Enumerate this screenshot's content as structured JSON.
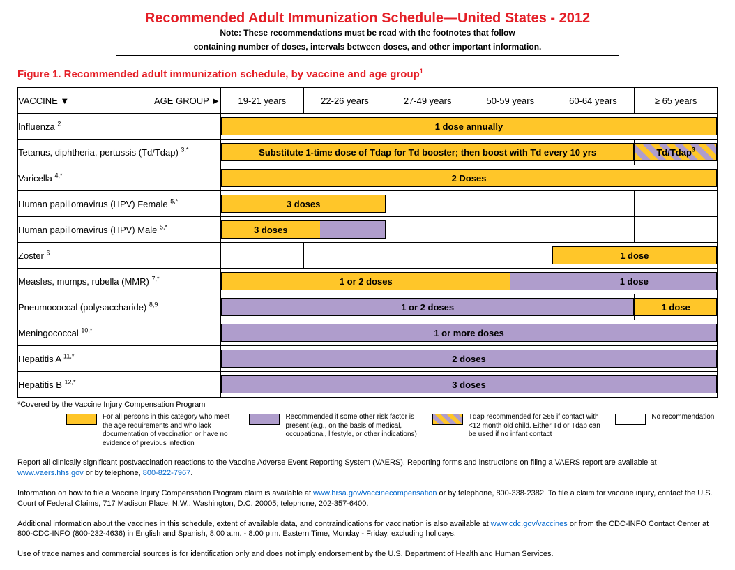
{
  "title": "Recommended Adult Immunization Schedule—United States - 2012",
  "note_line1": "Note: These recommendations must be read with the footnotes that follow",
  "note_line2": "containing number of doses, intervals between doses, and other important information.",
  "figure_title_pre": "Figure 1. Recommended adult immunization schedule, by vaccine and age group",
  "figure_title_sup": "1",
  "header": {
    "vaccine_label": "VACCINE ▼",
    "age_group_label": "AGE GROUP ►",
    "ages": [
      "19-21 years",
      "22-26 years",
      "27-49 years",
      "50-59 years",
      "60-64 years",
      "≥ 65 years"
    ]
  },
  "colors": {
    "yellow": "#ffc629",
    "purple": "#af9dcc",
    "red": "#e41e26",
    "link": "#0066cc",
    "border": "#000000",
    "background": "#ffffff"
  },
  "rows": {
    "influenza": {
      "label": "Influenza ",
      "sup": "2",
      "bar1": "1 dose annually"
    },
    "tdap": {
      "label": "Tetanus, diphtheria, pertussis (Td/Tdap) ",
      "sup": "3,*",
      "bar1": "Substitute 1-time dose of Tdap for Td booster; then boost with Td every 10 yrs",
      "bar2": "Td/Tdap",
      "bar2_sup": "3"
    },
    "varicella": {
      "label": "Varicella ",
      "sup": "4,*",
      "bar1": "2 Doses"
    },
    "hpv_f": {
      "label": "Human papillomavirus (HPV) Female ",
      "sup": "5,*",
      "bar1": "3 doses"
    },
    "hpv_m": {
      "label": "Human papillomavirus (HPV) Male ",
      "sup": "5,*",
      "bar1": "3 doses"
    },
    "zoster": {
      "label": "Zoster ",
      "sup": "6",
      "bar1": "1 dose"
    },
    "mmr": {
      "label": "Measles, mumps, rubella (MMR) ",
      "sup": "7,*",
      "bar1": "1 or 2 doses",
      "bar2": "1 dose"
    },
    "pneumo": {
      "label": "Pneumococcal (polysaccharide) ",
      "sup": "8,9",
      "bar1": "1 or 2 doses",
      "bar2": "1 dose"
    },
    "mening": {
      "label": "Meningococcal ",
      "sup": "10,*",
      "bar1": "1 or more doses"
    },
    "hepa": {
      "label": "Hepatitis A ",
      "sup": "11,*",
      "bar1": "2 doses"
    },
    "hepb": {
      "label": "Hepatitis B ",
      "sup": "12,*",
      "bar1": "3 doses"
    }
  },
  "coverage_note": "*Covered by the Vaccine Injury Compensation Program",
  "legend": {
    "yellow": "For all persons in this category who meet the age requirements and who lack documentation of vaccination or have no evidence of previous infection",
    "purple": "Recommended if some other risk factor is present (e.g., on the basis of medical, occupational, lifestyle, or other indications)",
    "striped": "Tdap recommended for ≥65 if contact with <12 month old child. Either Td or Tdap can be used if no infant contact",
    "white": "No recommendation"
  },
  "paragraphs": {
    "p1a": "Report all clinically significant postvaccination reactions to the Vaccine Adverse Event Reporting System (VAERS). Reporting forms and instructions on filing a VAERS report are available at ",
    "p1_link1": "www.vaers.hhs.gov",
    "p1b": " or by telephone, ",
    "p1_link2": "800-822-7967",
    "p1c": ".",
    "p2a": "Information on how to file a Vaccine Injury Compensation Program claim is available at ",
    "p2_link1": "www.hrsa.gov/vaccinecompensation",
    "p2b": " or by telephone, 800-338-2382. To file a claim for vaccine injury, contact the U.S. Court of Federal Claims, 717 Madison Place, N.W., Washington, D.C. 20005; telephone, 202-357-6400.",
    "p3a": "Additional information about the vaccines in this schedule, extent of available data, and contraindications for vaccination is also available at ",
    "p3_link1": "www.cdc.gov/vaccines",
    "p3b": " or from the CDC-INFO Contact Center at 800-CDC-INFO (800-232-4636) in English and Spanish, 8:00 a.m. - 8:00 p.m. Eastern Time, Monday - Friday, excluding holidays.",
    "p4": "Use of trade names and commercial sources is for identification only and does not imply endorsement by the U.S. Department of Health and Human Services."
  }
}
